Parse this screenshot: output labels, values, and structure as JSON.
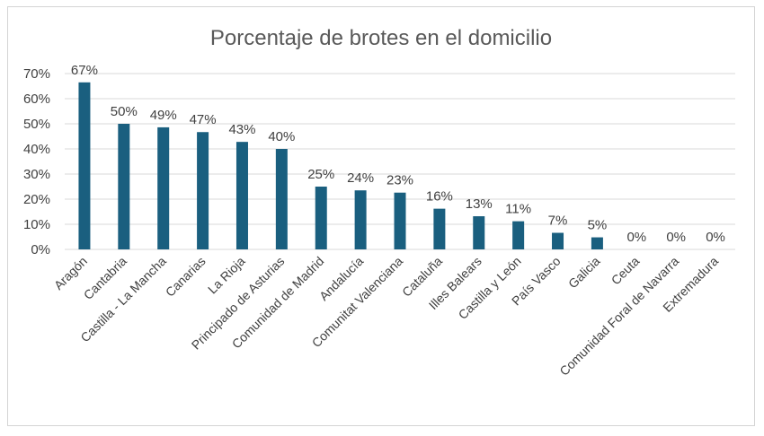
{
  "chart_data": {
    "type": "bar",
    "title": "Porcentaje de brotes en el domicilio",
    "categories": [
      "Aragón",
      "Cantabria",
      "Castilla - La Mancha",
      "Canarias",
      "La Rioja",
      "Principado de Asturias",
      "Comunidad de Madrid",
      "Andalucía",
      "Comunitat Valenciana",
      "Cataluña",
      "Illes Balears",
      "Castilla y León",
      "País Vasco",
      "Galicia",
      "Ceuta",
      "Comunidad Foral de Navarra",
      "Extremadura"
    ],
    "values": [
      66.5,
      50,
      48.6,
      46.7,
      42.8,
      40,
      25,
      23.5,
      22.6,
      16.2,
      13.2,
      11.2,
      6.6,
      4.8,
      0,
      0,
      0
    ],
    "data_labels": [
      "67%",
      "50%",
      "49%",
      "47%",
      "43%",
      "40%",
      "25%",
      "24%",
      "23%",
      "16%",
      "13%",
      "11%",
      "7%",
      "5%",
      "0%",
      "0%",
      "0%"
    ],
    "y_ticks": [
      "0%",
      "10%",
      "20%",
      "30%",
      "40%",
      "50%",
      "60%",
      "70%"
    ],
    "ylim": [
      0,
      70
    ],
    "xlabel": "",
    "ylabel": "",
    "grid": true,
    "legend": "none",
    "bar_color": "#1a5f7f"
  }
}
